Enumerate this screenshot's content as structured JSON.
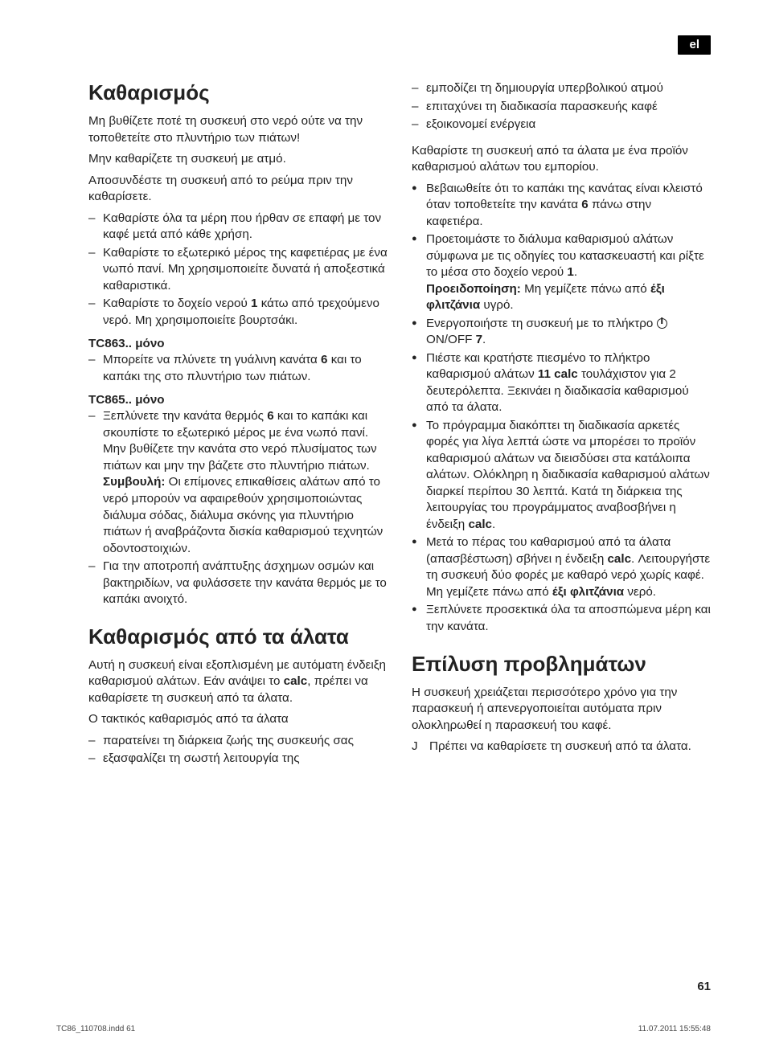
{
  "lang_tab": "el",
  "page_number": "61",
  "footer_left": "TC86_110708.indd   61",
  "footer_right": "11.07.2011   15:55:48",
  "left": {
    "h_clean": "Καθαρισμός",
    "p1": "Μη βυθίζετε ποτέ τη συσκευή στο νερό ούτε να την τοποθετείτε στο πλυντήριο των πιάτων!",
    "p2": "Μην καθαρίζετε τη συσκευή με ατμό.",
    "p3": "Αποσυνδέστε τη συσκευή από το ρεύμα πριν την καθαρίσετε.",
    "clean_list": [
      "Καθαρίστε όλα τα μέρη που ήρθαν σε επαφή με τον καφέ μετά από κάθε χρήση.",
      "Καθαρίστε το εξωτερικό μέρος της καφετιέρας με ένα νωπό πανί. Μη χρησιμοποιείτε δυνατά ή αποξεστικά καθαριστικά.",
      "Καθαρίστε το δοχείο νερού <b>1</b> κάτω από τρεχούμενο νερό. Μη χρησιμοποιείτε βουρτσάκι."
    ],
    "tc863_head": "TC863.. μόνο",
    "tc863_list": [
      "Μπορείτε να πλύνετε τη γυάλινη κανάτα <b>6</b> και το καπάκι της στο πλυντήριο των πιάτων."
    ],
    "tc865_head": "TC865.. μόνο",
    "tc865_list": [
      "Ξεπλύνετε την κανάτα θερμός <b>6</b> και το καπάκι και σκουπίστε το εξωτερικό μέρος με ένα νωπό πανί. Μην βυθίζετε την κανάτα στο νερό πλυσίματος των πιάτων και μην την βάζετε στο πλυντήριο πιάτων. <b>Συμβουλή:</b> Οι επίμονες επικαθίσεις αλάτων από το νερό μπορούν να αφαιρεθούν χρησιμοποιώντας διάλυμα σόδας, διάλυμα σκόνης για πλυντήριο πιάτων ή αναβράζοντα δισκία καθαρισμού τεχνητών οδοντοστοιχιών.",
      "Για την αποτροπή ανάπτυξης άσχημων οσμών και βακτηριδίων, να φυλάσσετε την κανάτα θερμός με το καπάκι ανοιχτό."
    ],
    "h_descale": "Καθαρισμός από τα άλατα",
    "descale_p1": "Αυτή η συσκευή είναι εξοπλισμένη με αυτόματη ένδειξη καθαρισμού αλάτων. Εάν ανάψει το <b>calc</b>, πρέπει να καθαρίσετε τη συσκευή από τα άλατα.",
    "descale_p2": "Ο τακτικός καθαρισμός από τα άλατα",
    "descale_list": [
      "παρατείνει τη διάρκεια ζωής της συσκευής σας",
      "εξασφαλίζει τη σωστή λειτουργία της"
    ]
  },
  "right": {
    "descale_list_cont": [
      "εμποδίζει τη δημιουργία υπερβολικού ατμού",
      "επιταχύνει τη διαδικασία παρασκευής καφέ",
      "εξοικονομεί ενέργεια"
    ],
    "p_after": "Καθαρίστε τη συσκευή από τα άλατα με ένα προϊόν καθαρισμού αλάτων του εμπορίου.",
    "steps": [
      "Βεβαιωθείτε ότι το καπάκι της κανάτας είναι κλειστό όταν τοποθετείτε την κανάτα <b>6</b> πάνω στην καφετιέρα.",
      "Προετοιμάστε το διάλυμα καθαρισμού αλάτων σύμφωνα με τις οδηγίες του κατασκευαστή και ρίξτε το μέσα στο δοχείο νερού <b>1</b>.<br><b>Προειδοποίηση:</b> Μη γεμίζετε πάνω από <b>έξι φλιτζάνια</b> υγρό.",
      "Ενεργοποιήστε τη συσκευή με το πλήκτρο <span class=\"pwr\"></span> ON/OFF <b>7</b>.",
      "Πιέστε και κρατήστε πιεσμένο το πλήκτρο καθαρισμού αλάτων <b>11 calc</b> τουλάχιστον για 2 δευτερόλεπτα. Ξεκινάει η διαδικασία καθαρισμού από τα άλατα.",
      "Το πρόγραμμα διακόπτει τη διαδικασία αρκετές φορές για λίγα λεπτά ώστε να μπορέσει το προϊόν καθαρισμού αλάτων να διεισδύσει στα κατάλοιπα αλάτων. Ολόκληρη η διαδικασία καθαρισμού αλάτων διαρκεί περίπου 30 λεπτά. Κατά τη διάρκεια της λειτουργίας του προγράμματος αναβοσβήνει η ένδειξη <b>calc</b>.",
      "Μετά το πέρας του καθαρισμού από τα άλατα (απασβέστωση) σβήνει η ένδειξη <b>calc</b>. Λειτουργήστε τη συσκευή δύο φορές με καθαρό νερό χωρίς καφέ. Μη γεμίζετε πάνω από <b>έξι φλιτζάνια</b> νερό.",
      "Ξεπλύνετε προσεκτικά όλα τα αποσπώμενα μέρη και την κανάτα."
    ],
    "h_trouble": "Επίλυση προβλημάτων",
    "trouble_p": "Η συσκευή χρειάζεται περισσότερο χρόνο για την παρασκευή ή απενεργοποιείται αυτόματα πριν ολοκληρωθεί η παρασκευή του καφέ.",
    "trouble_fix_arrow": "J",
    "trouble_fix": "Πρέπει να καθαρίσετε τη συσκευή από τα άλατα."
  }
}
